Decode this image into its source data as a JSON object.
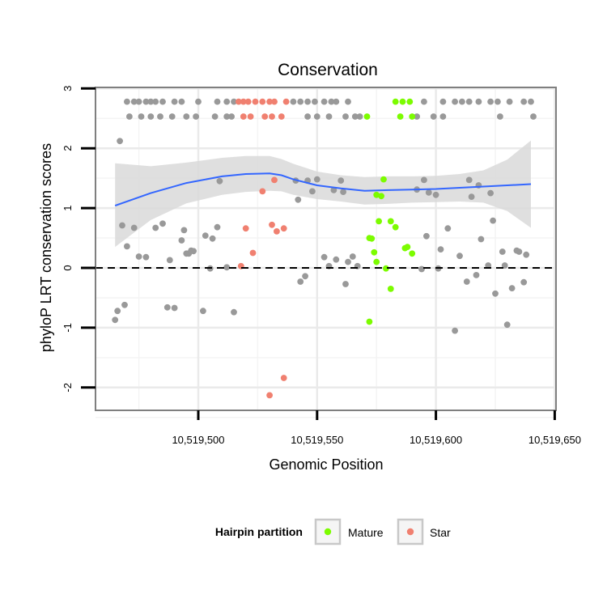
{
  "chart_data": {
    "type": "scatter",
    "title": "Conservation",
    "xlabel": "Genomic Position",
    "ylabel": "phyloP LRT conservation scores",
    "xlim": [
      10519460,
      10519650
    ],
    "ylim": [
      -2.35,
      3.05
    ],
    "x_ticks": [
      10519500,
      10519550,
      10519600,
      10519650
    ],
    "x_tick_labels": [
      "10,519,500",
      "10,519,550",
      "10,519,600",
      "10,519,650"
    ],
    "y_ticks": [
      -2,
      -1,
      0,
      1,
      2,
      3
    ],
    "y_tick_labels": [
      "-2",
      "-1",
      "0",
      "1",
      "2",
      "3"
    ],
    "reference_line": {
      "y": 0,
      "style": "dashed"
    },
    "legend": {
      "title": "Hairpin partition",
      "position": "bottom",
      "entries": [
        {
          "label": "Mature",
          "color": "#7cfc00"
        },
        {
          "label": "Star",
          "color": "#f08070"
        }
      ]
    },
    "colors": {
      "other": "#999999",
      "mature": "#7cfc00",
      "star": "#f08070",
      "smooth": "#3366ff",
      "band": "#d9d9d9"
    },
    "smooth": {
      "x": [
        10519465,
        10519480,
        10519495,
        10519510,
        10519520,
        10519530,
        10519535,
        10519540,
        10519550,
        10519560,
        10519570,
        10519580,
        10519590,
        10519600,
        10519610,
        10519620,
        10519630,
        10519640
      ],
      "y": [
        1.04,
        1.25,
        1.42,
        1.53,
        1.57,
        1.58,
        1.55,
        1.48,
        1.38,
        1.33,
        1.29,
        1.3,
        1.31,
        1.32,
        1.34,
        1.36,
        1.38,
        1.4
      ],
      "lower": [
        0.35,
        0.8,
        1.08,
        1.22,
        1.27,
        1.29,
        1.28,
        1.22,
        1.15,
        1.11,
        1.06,
        1.07,
        1.09,
        1.1,
        1.11,
        1.09,
        0.95,
        0.67
      ],
      "upper": [
        1.75,
        1.7,
        1.76,
        1.84,
        1.87,
        1.87,
        1.82,
        1.74,
        1.61,
        1.55,
        1.52,
        1.53,
        1.53,
        1.54,
        1.57,
        1.63,
        1.81,
        2.13
      ]
    },
    "series": [
      {
        "name": "Other",
        "points": [
          [
            10519465,
            -0.87
          ],
          [
            10519466,
            -0.72
          ],
          [
            10519467,
            2.12
          ],
          [
            10519468,
            0.71
          ],
          [
            10519469,
            -0.62
          ],
          [
            10519470,
            0.36
          ],
          [
            10519473,
            0.67
          ],
          [
            10519475,
            0.19
          ],
          [
            10519478,
            0.18
          ],
          [
            10519482,
            0.67
          ],
          [
            10519485,
            0.74
          ],
          [
            10519487,
            -0.66
          ],
          [
            10519488,
            0.13
          ],
          [
            10519490,
            -0.67
          ],
          [
            10519493,
            0.46
          ],
          [
            10519494,
            0.63
          ],
          [
            10519495,
            0.24
          ],
          [
            10519496,
            0.24
          ],
          [
            10519497,
            0.29
          ],
          [
            10519498,
            0.28
          ],
          [
            10519502,
            -0.72
          ],
          [
            10519503,
            0.54
          ],
          [
            10519505,
            -0.01
          ],
          [
            10519506,
            0.49
          ],
          [
            10519508,
            0.68
          ],
          [
            10519509,
            1.45
          ],
          [
            10519512,
            0.01
          ],
          [
            10519515,
            -0.74
          ],
          [
            10519541,
            1.46
          ],
          [
            10519542,
            1.14
          ],
          [
            10519543,
            -0.23
          ],
          [
            10519545,
            -0.14
          ],
          [
            10519546,
            1.46
          ],
          [
            10519548,
            1.28
          ],
          [
            10519550,
            1.48
          ],
          [
            10519553,
            0.18
          ],
          [
            10519555,
            0.03
          ],
          [
            10519557,
            1.3
          ],
          [
            10519558,
            0.14
          ],
          [
            10519560,
            1.46
          ],
          [
            10519561,
            1.27
          ],
          [
            10519562,
            -0.27
          ],
          [
            10519563,
            0.1
          ],
          [
            10519565,
            0.19
          ],
          [
            10519567,
            0.03
          ],
          [
            10519592,
            1.31
          ],
          [
            10519594,
            -0.02
          ],
          [
            10519595,
            1.47
          ],
          [
            10519596,
            0.53
          ],
          [
            10519597,
            1.26
          ],
          [
            10519600,
            1.22
          ],
          [
            10519601,
            -0.01
          ],
          [
            10519602,
            0.31
          ],
          [
            10519605,
            0.66
          ],
          [
            10519608,
            -1.05
          ],
          [
            10519610,
            0.2
          ],
          [
            10519613,
            -0.23
          ],
          [
            10519614,
            1.47
          ],
          [
            10519615,
            1.19
          ],
          [
            10519617,
            -0.12
          ],
          [
            10519618,
            1.38
          ],
          [
            10519619,
            0.48
          ],
          [
            10519622,
            0.04
          ],
          [
            10519623,
            1.25
          ],
          [
            10519624,
            0.79
          ],
          [
            10519625,
            -0.43
          ],
          [
            10519628,
            0.27
          ],
          [
            10519629,
            0.04
          ],
          [
            10519630,
            -0.95
          ],
          [
            10519632,
            -0.34
          ],
          [
            10519634,
            0.29
          ],
          [
            10519635,
            0.27
          ],
          [
            10519637,
            -0.24
          ],
          [
            10519638,
            0.22
          ],
          [
            10519470,
            2.78
          ],
          [
            10519473,
            2.78
          ],
          [
            10519475,
            2.78
          ],
          [
            10519478,
            2.78
          ],
          [
            10519480,
            2.78
          ],
          [
            10519482,
            2.78
          ],
          [
            10519485,
            2.78
          ],
          [
            10519490,
            2.78
          ],
          [
            10519493,
            2.78
          ],
          [
            10519500,
            2.78
          ],
          [
            10519508,
            2.78
          ],
          [
            10519512,
            2.78
          ],
          [
            10519515,
            2.78
          ],
          [
            10519540,
            2.78
          ],
          [
            10519543,
            2.78
          ],
          [
            10519546,
            2.78
          ],
          [
            10519549,
            2.78
          ],
          [
            10519553,
            2.78
          ],
          [
            10519556,
            2.78
          ],
          [
            10519558,
            2.78
          ],
          [
            10519563,
            2.78
          ],
          [
            10519595,
            2.78
          ],
          [
            10519603,
            2.78
          ],
          [
            10519608,
            2.78
          ],
          [
            10519611,
            2.78
          ],
          [
            10519614,
            2.78
          ],
          [
            10519618,
            2.78
          ],
          [
            10519623,
            2.78
          ],
          [
            10519626,
            2.78
          ],
          [
            10519631,
            2.78
          ],
          [
            10519637,
            2.78
          ],
          [
            10519640,
            2.78
          ],
          [
            10519471,
            2.53
          ],
          [
            10519476,
            2.53
          ],
          [
            10519480,
            2.53
          ],
          [
            10519484,
            2.53
          ],
          [
            10519489,
            2.53
          ],
          [
            10519495,
            2.53
          ],
          [
            10519499,
            2.53
          ],
          [
            10519507,
            2.53
          ],
          [
            10519512,
            2.53
          ],
          [
            10519514,
            2.53
          ],
          [
            10519546,
            2.53
          ],
          [
            10519550,
            2.53
          ],
          [
            10519555,
            2.53
          ],
          [
            10519562,
            2.53
          ],
          [
            10519566,
            2.53
          ],
          [
            10519568,
            2.53
          ],
          [
            10519592,
            2.53
          ],
          [
            10519599,
            2.53
          ],
          [
            10519603,
            2.53
          ],
          [
            10519627,
            2.53
          ],
          [
            10519641,
            2.53
          ]
        ]
      },
      {
        "name": "Mature",
        "points": [
          [
            10519571,
            2.53
          ],
          [
            10519583,
            2.78
          ],
          [
            10519586,
            2.78
          ],
          [
            10519589,
            2.78
          ],
          [
            10519585,
            2.53
          ],
          [
            10519590,
            2.53
          ],
          [
            10519575,
            1.22
          ],
          [
            10519577,
            1.2
          ],
          [
            10519578,
            1.48
          ],
          [
            10519576,
            0.78
          ],
          [
            10519581,
            0.78
          ],
          [
            10519583,
            0.68
          ],
          [
            10519572,
            0.5
          ],
          [
            10519573,
            0.49
          ],
          [
            10519574,
            0.26
          ],
          [
            10519575,
            0.1
          ],
          [
            10519579,
            -0.01
          ],
          [
            10519581,
            -0.35
          ],
          [
            10519587,
            0.33
          ],
          [
            10519588,
            0.35
          ],
          [
            10519590,
            0.24
          ],
          [
            10519572,
            -0.9
          ]
        ]
      },
      {
        "name": "Star",
        "points": [
          [
            10519517,
            2.78
          ],
          [
            10519519,
            2.78
          ],
          [
            10519521,
            2.78
          ],
          [
            10519524,
            2.78
          ],
          [
            10519527,
            2.78
          ],
          [
            10519530,
            2.78
          ],
          [
            10519532,
            2.78
          ],
          [
            10519537,
            2.78
          ],
          [
            10519519,
            2.53
          ],
          [
            10519522,
            2.53
          ],
          [
            10519528,
            2.53
          ],
          [
            10519531,
            2.53
          ],
          [
            10519535,
            2.53
          ],
          [
            10519527,
            1.28
          ],
          [
            10519532,
            1.47
          ],
          [
            10519520,
            0.66
          ],
          [
            10519531,
            0.72
          ],
          [
            10519533,
            0.61
          ],
          [
            10519536,
            0.66
          ],
          [
            10519523,
            0.25
          ],
          [
            10519518,
            0.03
          ],
          [
            10519536,
            -1.84
          ],
          [
            10519530,
            -2.13
          ]
        ]
      }
    ]
  }
}
